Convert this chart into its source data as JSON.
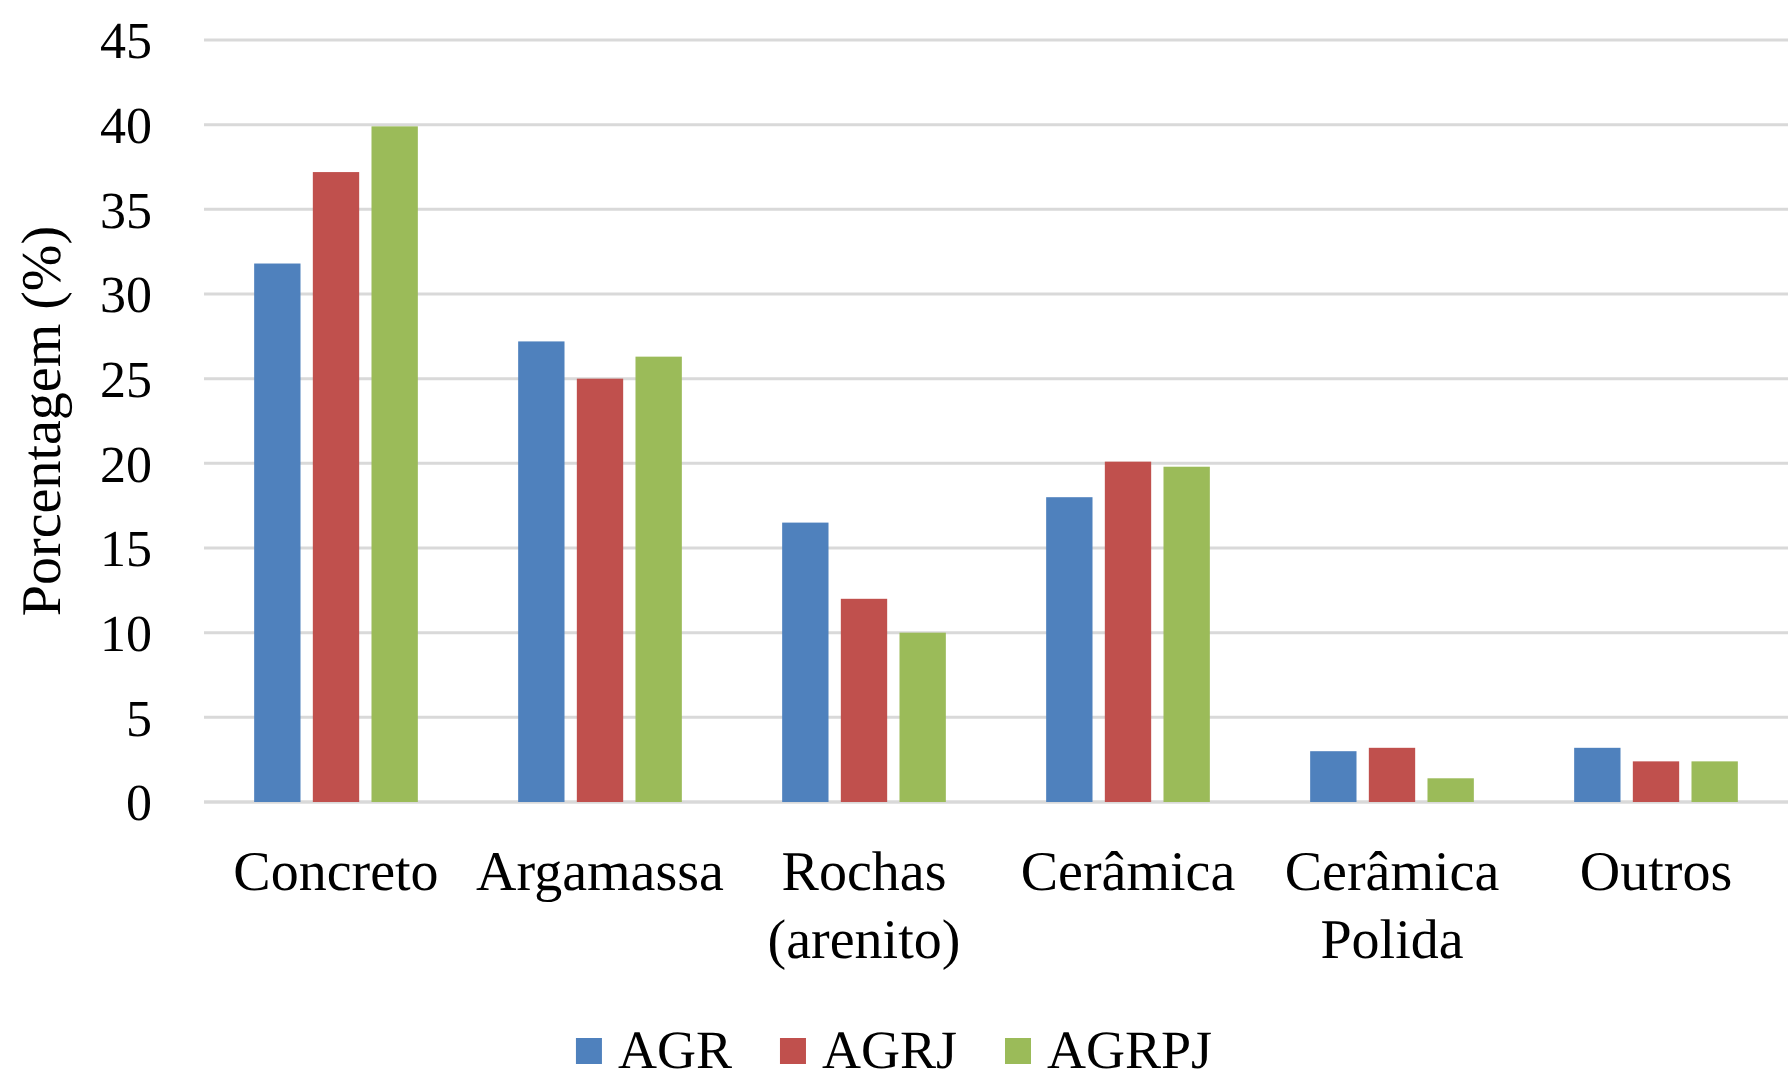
{
  "chart_data": {
    "type": "bar",
    "categories": [
      "Concreto",
      "Argamassa",
      "Rochas\n(arenito)",
      "Cerâmica",
      "Cerâmica\nPolida",
      "Outros"
    ],
    "series": [
      {
        "name": "AGR",
        "color": "#4f81bd",
        "values": [
          31.8,
          27.2,
          16.5,
          18.0,
          3.0,
          3.2
        ]
      },
      {
        "name": "AGRJ",
        "color": "#c0504d",
        "values": [
          37.2,
          25.0,
          12.0,
          20.1,
          3.2,
          2.4
        ]
      },
      {
        "name": "AGRPJ",
        "color": "#9bbb59",
        "values": [
          39.9,
          26.3,
          10.0,
          19.8,
          1.4,
          2.4
        ]
      }
    ],
    "ylabel": "Porcentagem (%)",
    "ylim": [
      0,
      45
    ],
    "yticks": [
      0,
      5,
      10,
      15,
      20,
      25,
      30,
      35,
      40,
      45
    ],
    "grid": "y",
    "legend": "bottom"
  }
}
